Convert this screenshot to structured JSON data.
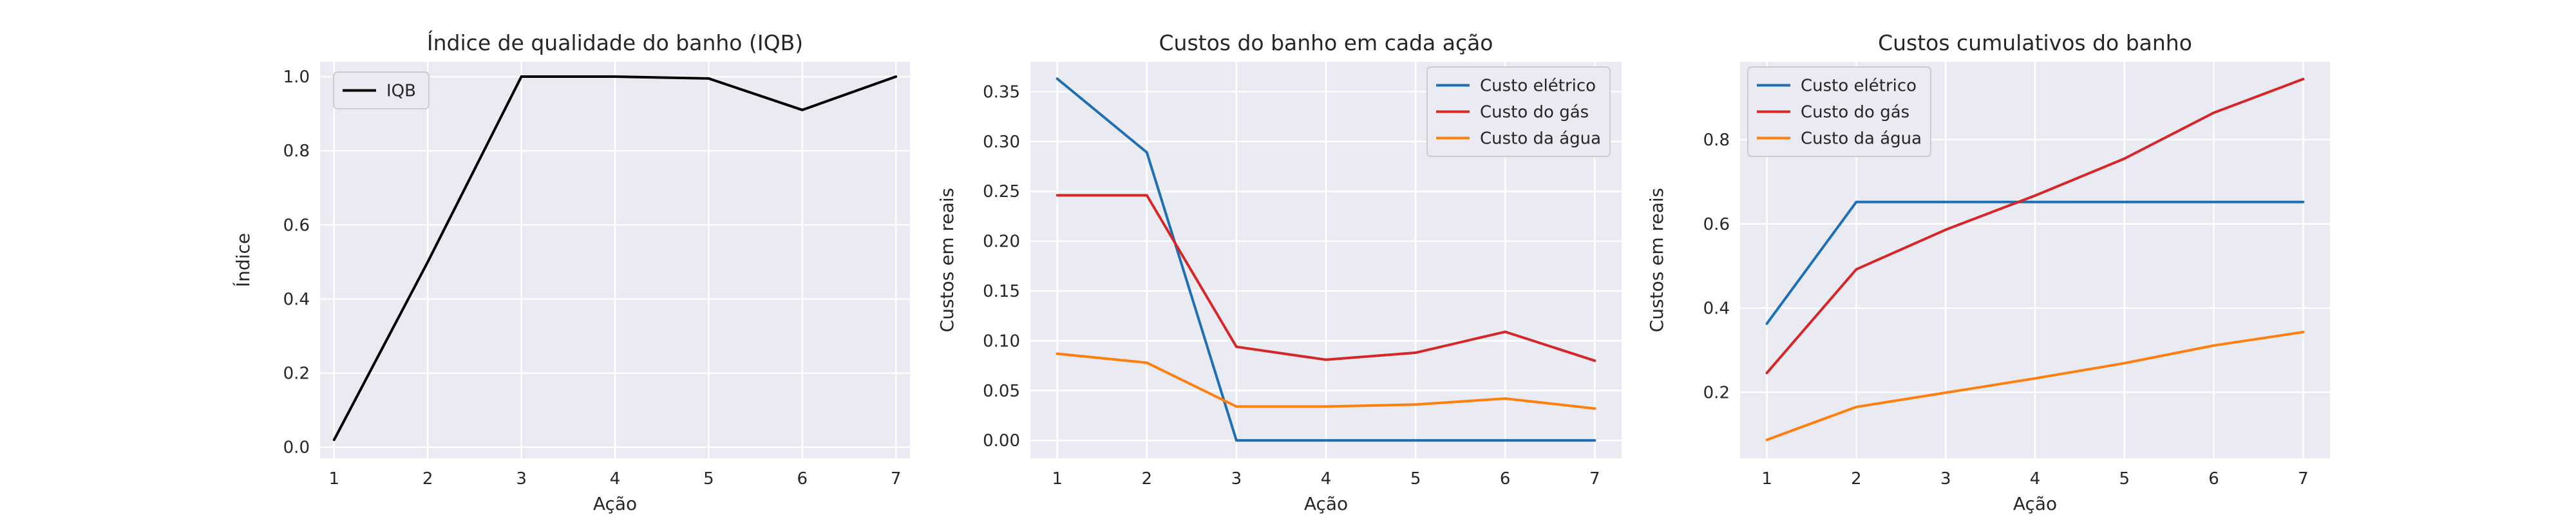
{
  "chart_data": [
    {
      "type": "line",
      "title": "Índice de qualidade do banho (IQB)",
      "xlabel": "Ação",
      "ylabel": "Índice",
      "x": [
        1,
        2,
        3,
        4,
        5,
        6,
        7
      ],
      "xticks": [
        "1",
        "2",
        "3",
        "4",
        "5",
        "6",
        "7"
      ],
      "yticks": [
        "0.0",
        "0.2",
        "0.4",
        "0.6",
        "0.8",
        "1.0"
      ],
      "xlim": [
        0.85,
        7.15
      ],
      "ylim": [
        -0.03,
        1.04
      ],
      "grid": true,
      "legend_position": "upper-left",
      "series": [
        {
          "name": "IQB",
          "color": "#000000",
          "values": [
            0.02,
            0.5,
            1.0,
            1.0,
            0.995,
            0.91,
            1.0
          ]
        }
      ]
    },
    {
      "type": "line",
      "title": "Custos do banho em cada ação",
      "xlabel": "Ação",
      "ylabel": "Custos em reais",
      "x": [
        1,
        2,
        3,
        4,
        5,
        6,
        7
      ],
      "xticks": [
        "1",
        "2",
        "3",
        "4",
        "5",
        "6",
        "7"
      ],
      "yticks": [
        "0.00",
        "0.05",
        "0.10",
        "0.15",
        "0.20",
        "0.25",
        "0.30",
        "0.35"
      ],
      "xlim": [
        0.7,
        7.3
      ],
      "ylim": [
        -0.018,
        0.38
      ],
      "grid": true,
      "legend_position": "upper-right",
      "series": [
        {
          "name": "Custo elétrico",
          "color": "#1f6fb4",
          "values": [
            0.363,
            0.289,
            0.0,
            0.0,
            0.0,
            0.0,
            0.0
          ]
        },
        {
          "name": "Custo do gás",
          "color": "#d62728",
          "values": [
            0.246,
            0.246,
            0.094,
            0.081,
            0.088,
            0.109,
            0.08
          ]
        },
        {
          "name": "Custo da água",
          "color": "#ff7f0e",
          "values": [
            0.087,
            0.078,
            0.034,
            0.034,
            0.036,
            0.042,
            0.032
          ]
        }
      ]
    },
    {
      "type": "line",
      "title": "Custos cumulativos do banho",
      "xlabel": "Ação",
      "ylabel": "Custos em reais",
      "x": [
        1,
        2,
        3,
        4,
        5,
        6,
        7
      ],
      "xticks": [
        "1",
        "2",
        "3",
        "4",
        "5",
        "6",
        "7"
      ],
      "yticks": [
        "0.2",
        "0.4",
        "0.6",
        "0.8"
      ],
      "xlim": [
        0.7,
        7.3
      ],
      "ylim": [
        0.043,
        0.985
      ],
      "grid": true,
      "legend_position": "upper-left",
      "series": [
        {
          "name": "Custo elétrico",
          "color": "#1f6fb4",
          "values": [
            0.363,
            0.652,
            0.652,
            0.652,
            0.652,
            0.652,
            0.652
          ]
        },
        {
          "name": "Custo do gás",
          "color": "#d62728",
          "values": [
            0.246,
            0.492,
            0.586,
            0.667,
            0.755,
            0.864,
            0.944
          ]
        },
        {
          "name": "Custo da água",
          "color": "#ff7f0e",
          "values": [
            0.087,
            0.165,
            0.199,
            0.233,
            0.269,
            0.311,
            0.343
          ]
        }
      ]
    }
  ]
}
